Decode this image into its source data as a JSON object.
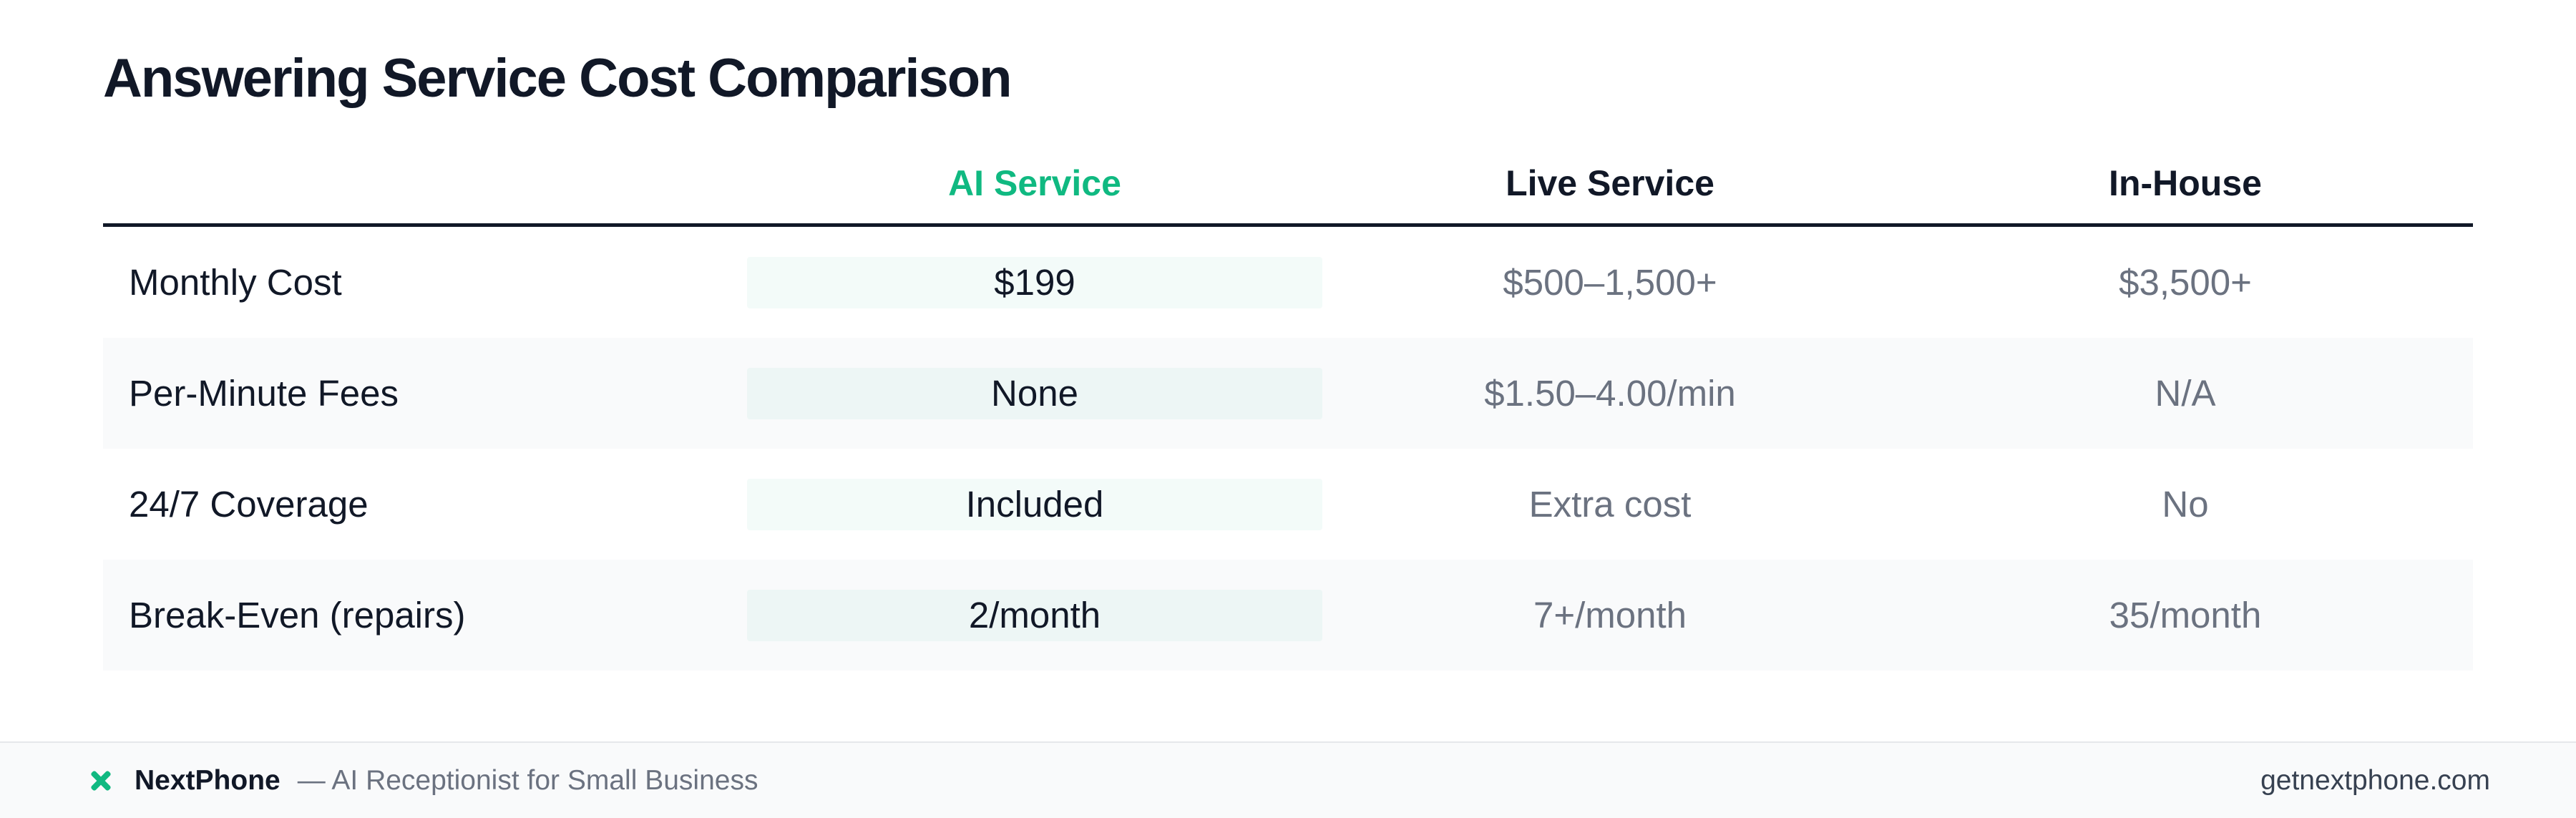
{
  "title": "Answering Service Cost Comparison",
  "table": {
    "columns": [
      "",
      "AI Service",
      "Live Service",
      "In-House"
    ],
    "rows": [
      {
        "label": "Monthly Cost",
        "ai": "$199",
        "live": "$500–1,500+",
        "inhouse": "$3,500+"
      },
      {
        "label": "Per-Minute Fees",
        "ai": "None",
        "live": "$1.50–4.00/min",
        "inhouse": "N/A"
      },
      {
        "label": "24/7 Coverage",
        "ai": "Included",
        "live": "Extra cost",
        "inhouse": "No"
      },
      {
        "label": "Break-Even (repairs)",
        "ai": "2/month",
        "live": "7+/month",
        "inhouse": "35/month"
      }
    ]
  },
  "footer": {
    "logo_icon": "cross-logo-icon",
    "brand": "NextPhone",
    "tagline": "— AI Receptionist for Small Business",
    "url": "getnextphone.com"
  },
  "colors": {
    "accent": "#10b981",
    "text_dark": "#111827",
    "text_muted": "#6b7280",
    "row_alt": "#f9fafb"
  }
}
